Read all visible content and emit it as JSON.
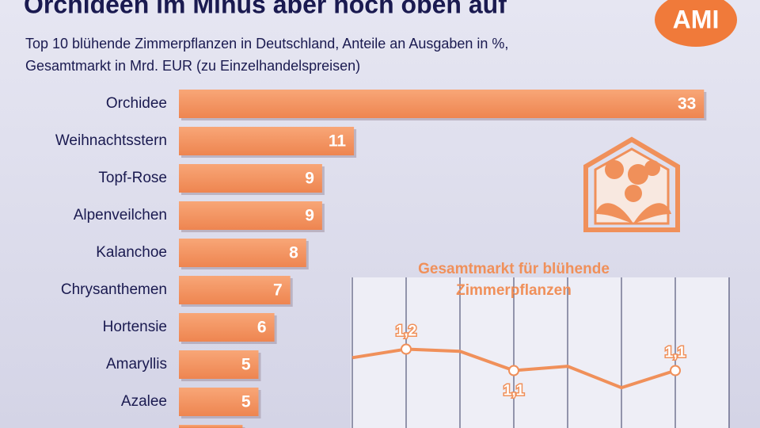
{
  "header": {
    "title": "Orchideen im Minus aber noch oben auf",
    "subtitle": [
      "Top 10 blühende Zimmerpflanzen in Deutschland, Anteile an Ausgaben in %,",
      "Gesamtmarkt in Mrd. EUR (zu Einzelhandelspreisen)"
    ],
    "logo": "AMI"
  },
  "chart_data": [
    {
      "type": "hbar",
      "color": "#f4925f",
      "categories": [
        "Orchidee",
        "Weihnachtsstern",
        "Topf-Rose",
        "Alpenveilchen",
        "Kalanchoe",
        "Chrysanthemen",
        "Hortensie",
        "Amaryllis",
        "Azalee",
        null
      ],
      "values": [
        33,
        11,
        9,
        9,
        8,
        7,
        6,
        5,
        5,
        4
      ]
    },
    {
      "type": "line",
      "color": "#f0905a",
      "title": [
        "Gesamtmarkt für blühende",
        "Zimmerpflanzen"
      ],
      "categories": [
        null,
        null,
        null,
        null,
        null,
        null,
        null
      ],
      "values": [
        1.16,
        1.2,
        1.19,
        1.1,
        1.12,
        1.02,
        1.1
      ],
      "value_labels": [
        null,
        "1,2",
        null,
        "1,1",
        null,
        null,
        "1,1"
      ],
      "ylim": [
        0.95,
        1.25
      ]
    }
  ]
}
